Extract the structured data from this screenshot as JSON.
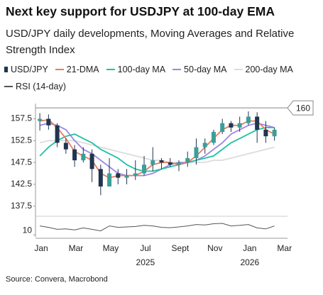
{
  "title": "Next key support for USDJPY at 100-day EMA",
  "subtitle": "USD/JPY daily developments, Moving Averages and Relative Strength Index",
  "source": "Source: Convera, Macrobond",
  "chart_data": [
    {
      "type": "candlestick",
      "name": "USD/JPY",
      "color": "#1f3550",
      "categories": [
        "Jan",
        null,
        null,
        null,
        "Mar",
        null,
        null,
        null,
        "May",
        null,
        null,
        null,
        "Jul",
        null,
        null,
        null,
        "Sept",
        null,
        null,
        null,
        "Nov",
        null,
        null,
        null,
        "Jan",
        null,
        null,
        null,
        "Mar"
      ],
      "x_group_labels": [
        "2025",
        "2026"
      ],
      "open": [
        157,
        157.5,
        156,
        152,
        150.5,
        148,
        149.5,
        146,
        142,
        145,
        144,
        144.5,
        145,
        147,
        148,
        147.5,
        147,
        147.5,
        148.5,
        151,
        152,
        154.5,
        156.5,
        155.5,
        156.5,
        158,
        155,
        153.5,
        null
      ],
      "high": [
        158.8,
        158.5,
        156.5,
        153,
        151.5,
        151,
        150.5,
        147,
        148.5,
        146,
        146,
        148,
        149,
        151,
        148.5,
        148.5,
        148,
        150,
        153,
        153,
        155,
        157.5,
        157,
        158,
        159.2,
        159,
        157,
        155.5,
        null
      ],
      "low": [
        154.8,
        155,
        151,
        149.5,
        146.5,
        147.5,
        143,
        140,
        142,
        142.5,
        142.5,
        143.5,
        144.5,
        145.5,
        146,
        146.5,
        145.5,
        146.5,
        147,
        149.5,
        151.5,
        154,
        154.5,
        154.5,
        156,
        152,
        152,
        152.5,
        null
      ],
      "close": [
        157.5,
        156,
        152,
        150.5,
        148,
        149.5,
        146,
        142,
        145,
        144,
        144.5,
        145,
        147,
        148,
        147.5,
        147,
        147.5,
        148.5,
        151,
        152,
        154.5,
        156.5,
        155.5,
        156.5,
        158,
        155,
        153.5,
        155,
        null
      ],
      "series": [
        {
          "name": "21-DMA",
          "color": "#ec7a5c",
          "values": [
            157,
            157.3,
            155.5,
            153,
            150,
            149,
            148,
            145,
            144,
            144.5,
            144.5,
            144.5,
            145.5,
            147,
            147.5,
            147.5,
            147,
            147.5,
            149,
            151,
            153,
            155,
            156,
            156,
            157,
            157,
            155,
            154,
            null
          ]
        },
        {
          "name": "100-day MA",
          "color": "#1fc2a2",
          "values": [
            149,
            151,
            152.5,
            153.5,
            154,
            153,
            152,
            150.5,
            149.5,
            148.5,
            147,
            146,
            145.5,
            145.5,
            146,
            146.5,
            147,
            147.5,
            148,
            148.5,
            149,
            150.5,
            152,
            153,
            154,
            155,
            155.5,
            155.5,
            null
          ]
        },
        {
          "name": "50-day MA",
          "color": "#9c88e2",
          "values": [
            156,
            156.5,
            156,
            155,
            152.5,
            150.5,
            149.5,
            148,
            146.5,
            145,
            144.5,
            144.5,
            144.5,
            145,
            146,
            147,
            147.5,
            147.5,
            148,
            149,
            150.5,
            152,
            154,
            155,
            156,
            156.5,
            156,
            155.5,
            null
          ]
        },
        {
          "name": "200-day MA",
          "color": "#dcdcdc",
          "values": [
            152,
            152.5,
            152.5,
            152.5,
            152.5,
            152,
            151.5,
            151,
            150.5,
            150,
            149.5,
            149,
            148.5,
            148,
            148,
            147.5,
            147.5,
            147.5,
            147.5,
            147.5,
            148,
            148,
            148.5,
            149,
            149.5,
            150,
            150.5,
            151,
            null
          ]
        }
      ],
      "reference_line": {
        "value": 160
      },
      "ylim": [
        135.5,
        161
      ],
      "yticks": [
        137.5,
        142.5,
        147.5,
        152.5,
        157.5
      ]
    },
    {
      "type": "line",
      "series": [
        {
          "name": "RSI (14-day)",
          "color": "#555555",
          "values": [
            55,
            48,
            38,
            40,
            35,
            45,
            38,
            30,
            55,
            48,
            50,
            52,
            58,
            55,
            48,
            46,
            50,
            55,
            62,
            60,
            66,
            68,
            55,
            58,
            62,
            45,
            40,
            55,
            null
          ]
        }
      ],
      "ylim": [
        0,
        100
      ],
      "yticks": [
        10
      ]
    }
  ]
}
